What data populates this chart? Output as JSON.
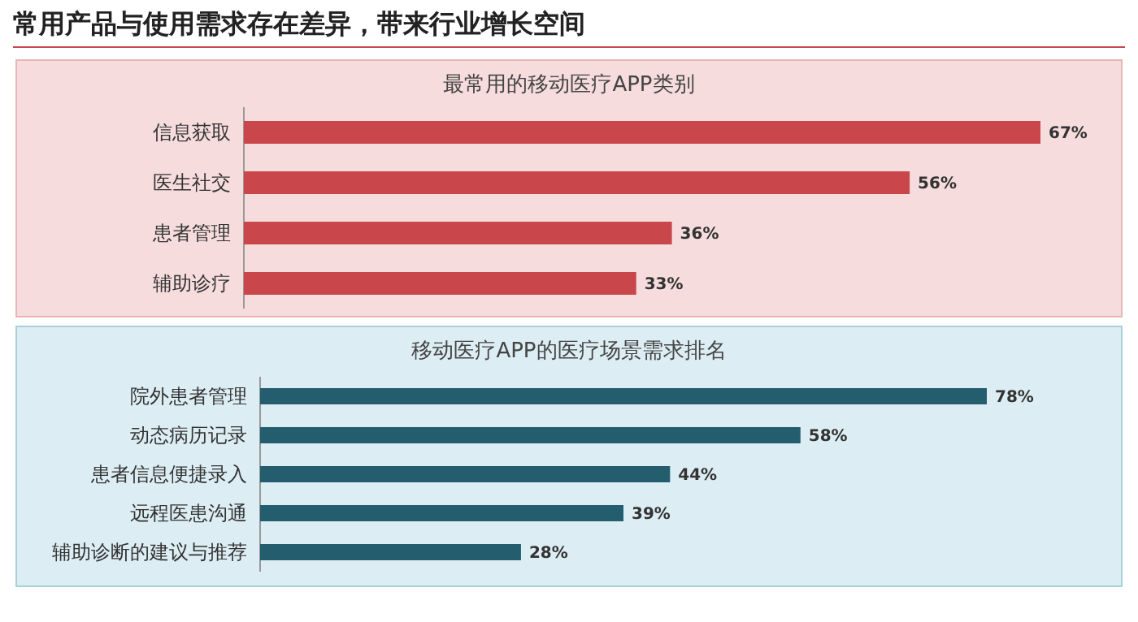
{
  "chart_data": [
    {
      "type": "bar",
      "orientation": "horizontal",
      "title": "常用产品与使用需求存在差异，带来行业增长空间",
      "subtitle": "最常用的移动医疗APP类别",
      "categories": [
        "信息获取",
        "医生社交",
        "患者管理",
        "辅助诊疗"
      ],
      "series": [
        {
          "color": "#c9474b",
          "values": [
            67,
            56,
            36,
            33
          ],
          "value_labels": [
            "67%",
            "56%",
            "36%",
            "33%"
          ]
        }
      ]
    },
    {
      "type": "bar",
      "orientation": "horizontal",
      "title": "移动医疗APP的医疗场景需求排名",
      "categories": [
        "院外患者管理",
        "动态病历记录",
        "患者信息便捷录入",
        "远程医患沟通",
        "辅助诊断的建议与推荐"
      ],
      "series": [
        {
          "color": "#245e6e",
          "values": [
            78,
            58,
            44,
            39,
            28
          ],
          "value_labels": [
            "78%",
            "58%",
            "44%",
            "39%",
            "28%"
          ]
        }
      ]
    }
  ]
}
